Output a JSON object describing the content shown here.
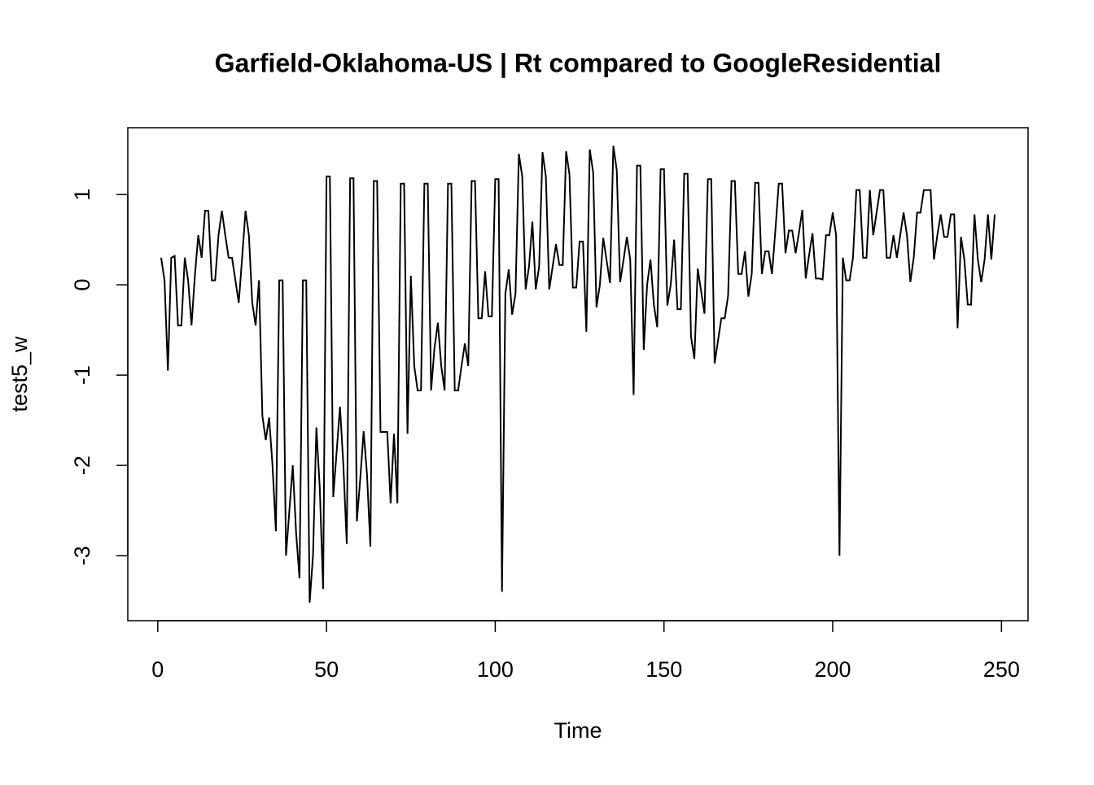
{
  "chart_data": {
    "type": "line",
    "title": "Garfield-Oklahoma-US | Rt compared to GoogleResidential",
    "xlabel": "Time",
    "ylabel": "test5_w",
    "x": [
      1,
      2,
      3,
      4,
      5,
      6,
      7,
      8,
      9,
      10,
      11,
      12,
      13,
      14,
      15,
      16,
      17,
      18,
      19,
      20,
      21,
      22,
      23,
      24,
      25,
      26,
      27,
      28,
      29,
      30,
      31,
      32,
      33,
      34,
      35,
      36,
      37,
      38,
      39,
      40,
      41,
      42,
      43,
      44,
      45,
      46,
      47,
      48,
      49,
      50,
      51,
      52,
      53,
      54,
      55,
      56,
      57,
      58,
      59,
      60,
      61,
      62,
      63,
      64,
      65,
      66,
      67,
      68,
      69,
      70,
      71,
      72,
      73,
      74,
      75,
      76,
      77,
      78,
      79,
      80,
      81,
      82,
      83,
      84,
      85,
      86,
      87,
      88,
      89,
      90,
      91,
      92,
      93,
      94,
      95,
      96,
      97,
      98,
      99,
      100,
      101,
      102,
      103,
      104,
      105,
      106,
      107,
      108,
      109,
      110,
      111,
      112,
      113,
      114,
      115,
      116,
      117,
      118,
      119,
      120,
      121,
      122,
      123,
      124,
      125,
      126,
      127,
      128,
      129,
      130,
      131,
      132,
      133,
      134,
      135,
      136,
      137,
      138,
      139,
      140,
      141,
      142,
      143,
      144,
      145,
      146,
      147,
      148,
      149,
      150,
      151,
      152,
      153,
      154,
      155,
      156,
      157,
      158,
      159,
      160,
      161,
      162,
      163,
      164,
      165,
      166,
      167,
      168,
      169,
      170,
      171,
      172,
      173,
      174,
      175,
      176,
      177,
      178,
      179,
      180,
      181,
      182,
      183,
      184,
      185,
      186,
      187,
      188,
      189,
      190,
      191,
      192,
      193,
      194,
      195,
      196,
      197,
      198,
      199,
      200,
      201,
      202,
      203,
      204,
      205,
      206,
      207,
      208,
      209,
      210,
      211,
      212,
      213,
      214,
      215,
      216,
      217,
      218,
      219,
      220,
      221,
      222,
      223,
      224,
      225,
      226,
      227,
      228,
      229,
      230,
      231,
      232,
      233,
      234,
      235,
      236,
      237,
      238,
      239,
      240,
      241,
      242,
      243,
      244,
      245,
      246,
      247,
      248
    ],
    "series": [
      {
        "name": "test5_w",
        "color": "#000000",
        "values": [
          0.3,
          0.05,
          -0.95,
          0.3,
          0.32,
          -0.45,
          -0.45,
          0.3,
          0.05,
          -0.45,
          0.1,
          0.55,
          0.3,
          0.82,
          0.82,
          0.05,
          0.05,
          0.55,
          0.82,
          0.55,
          0.3,
          0.3,
          0.05,
          -0.2,
          0.3,
          0.82,
          0.55,
          -0.2,
          -0.45,
          0.05,
          -1.45,
          -1.72,
          -1.47,
          -2.0,
          -2.73,
          0.05,
          0.05,
          -3.0,
          -2.5,
          -2.0,
          -2.75,
          -3.25,
          0.05,
          0.05,
          -3.52,
          -3.0,
          -1.58,
          -2.25,
          -3.37,
          1.2,
          1.2,
          -2.35,
          -1.85,
          -1.35,
          -2.0,
          -2.87,
          1.18,
          1.18,
          -2.62,
          -2.15,
          -1.62,
          -2.1,
          -2.9,
          1.15,
          1.15,
          -1.63,
          -1.63,
          -1.63,
          -2.42,
          -1.65,
          -2.42,
          1.12,
          1.12,
          -1.65,
          0.1,
          -0.9,
          -1.17,
          -1.17,
          1.12,
          1.12,
          -1.17,
          -0.7,
          -0.42,
          -0.9,
          -1.17,
          1.12,
          1.12,
          -1.17,
          -1.17,
          -0.9,
          -0.65,
          -0.9,
          1.15,
          1.15,
          -0.37,
          -0.37,
          0.15,
          -0.35,
          -0.35,
          1.17,
          1.17,
          -3.4,
          -0.1,
          0.17,
          -0.33,
          -0.1,
          1.45,
          1.2,
          -0.05,
          0.2,
          0.7,
          -0.05,
          0.2,
          1.47,
          1.2,
          -0.05,
          0.2,
          0.45,
          0.22,
          0.22,
          1.48,
          1.22,
          -0.03,
          -0.03,
          0.48,
          0.48,
          -0.52,
          1.5,
          1.25,
          -0.25,
          0.0,
          0.52,
          0.27,
          0.02,
          1.54,
          1.27,
          0.03,
          0.27,
          0.53,
          0.28,
          -1.22,
          1.32,
          1.32,
          -0.72,
          0.0,
          0.28,
          -0.22,
          -0.47,
          1.28,
          1.28,
          -0.23,
          0.0,
          0.5,
          -0.27,
          -0.27,
          1.23,
          1.23,
          -0.57,
          -0.82,
          0.18,
          -0.07,
          -0.32,
          1.17,
          1.17,
          -0.87,
          -0.62,
          -0.37,
          -0.37,
          -0.12,
          1.15,
          1.15,
          0.12,
          0.12,
          0.37,
          -0.13,
          0.12,
          1.13,
          1.13,
          0.12,
          0.37,
          0.37,
          0.12,
          0.6,
          1.12,
          1.12,
          0.35,
          0.6,
          0.6,
          0.35,
          0.58,
          0.83,
          0.07,
          0.33,
          0.57,
          0.07,
          0.07,
          0.06,
          0.55,
          0.55,
          0.8,
          0.55,
          -3.0,
          0.3,
          0.05,
          0.05,
          0.3,
          1.05,
          1.05,
          0.3,
          0.3,
          1.05,
          0.55,
          0.8,
          1.05,
          1.05,
          0.3,
          0.3,
          0.55,
          0.3,
          0.55,
          0.8,
          0.55,
          0.03,
          0.3,
          0.8,
          0.8,
          1.05,
          1.05,
          1.05,
          0.28,
          0.55,
          0.78,
          0.53,
          0.53,
          0.78,
          0.78,
          -0.48,
          0.53,
          0.28,
          -0.22,
          -0.22,
          0.78,
          0.28,
          0.03,
          0.28,
          0.78,
          0.28,
          0.78
        ]
      }
    ],
    "xlim": [
      -8.88,
      257.88
    ],
    "xticks": [
      0,
      50,
      100,
      150,
      200,
      250
    ],
    "ylim": [
      -3.72,
      1.74
    ],
    "yticks": [
      -3,
      -2,
      -1,
      0,
      1
    ]
  }
}
